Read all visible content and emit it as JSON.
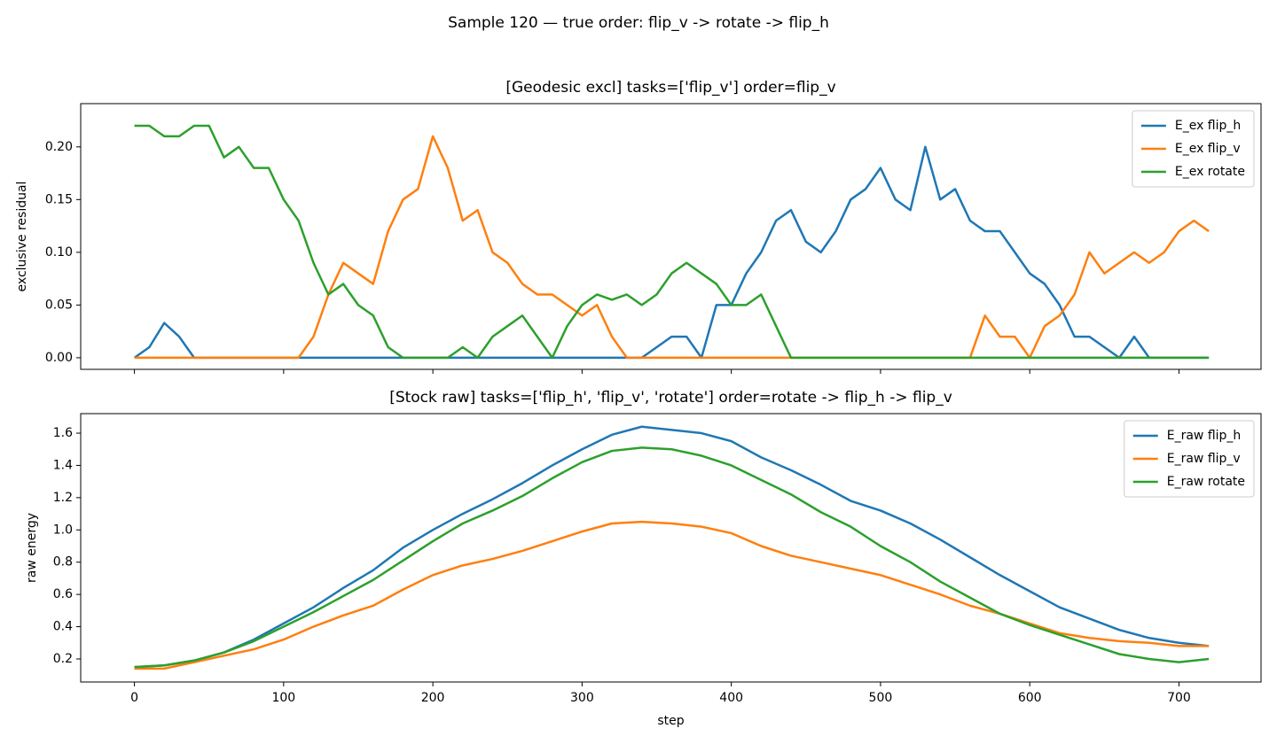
{
  "title": "Sample 120 — true order: flip_v -> rotate -> flip_h",
  "chart_data": [
    {
      "type": "line",
      "title": "[Geodesic excl] tasks=['flip_v'] order=flip_v",
      "y_label": "exclusive residual",
      "x": [
        0,
        10,
        20,
        30,
        40,
        50,
        60,
        70,
        80,
        90,
        100,
        110,
        120,
        130,
        140,
        150,
        160,
        170,
        180,
        190,
        200,
        210,
        220,
        230,
        240,
        250,
        260,
        270,
        280,
        290,
        300,
        310,
        320,
        330,
        340,
        350,
        360,
        370,
        380,
        390,
        400,
        410,
        420,
        430,
        440,
        450,
        460,
        470,
        480,
        490,
        500,
        510,
        520,
        530,
        540,
        550,
        560,
        570,
        580,
        590,
        600,
        610,
        620,
        630,
        640,
        650,
        660,
        670,
        680,
        690,
        700,
        710,
        720
      ],
      "series": [
        {
          "name": "E_ex flip_h",
          "color": "#1f77b4",
          "values": [
            0,
            0.01,
            0.033,
            0.02,
            0,
            0,
            0,
            0,
            0,
            0,
            0,
            0,
            0,
            0,
            0,
            0,
            0,
            0,
            0,
            0,
            0,
            0,
            0,
            0,
            0,
            0,
            0,
            0,
            0,
            0,
            0,
            0,
            0,
            0,
            0,
            0.01,
            0.02,
            0.02,
            0,
            0.05,
            0.05,
            0.08,
            0.1,
            0.13,
            0.14,
            0.11,
            0.1,
            0.12,
            0.15,
            0.16,
            0.18,
            0.15,
            0.14,
            0.2,
            0.15,
            0.16,
            0.13,
            0.12,
            0.12,
            0.1,
            0.08,
            0.07,
            0.05,
            0.02,
            0.02,
            0.01,
            0,
            0.02,
            0,
            0,
            0,
            0,
            0
          ]
        },
        {
          "name": "E_ex flip_v",
          "color": "#ff7f0e",
          "values": [
            0,
            0,
            0,
            0,
            0,
            0,
            0,
            0,
            0,
            0,
            0,
            0,
            0.02,
            0.06,
            0.09,
            0.08,
            0.07,
            0.12,
            0.15,
            0.16,
            0.21,
            0.18,
            0.13,
            0.14,
            0.1,
            0.09,
            0.07,
            0.06,
            0.06,
            0.05,
            0.04,
            0.05,
            0.02,
            0,
            0,
            0,
            0,
            0,
            0,
            0,
            0,
            0,
            0,
            0,
            0,
            0,
            0,
            0,
            0,
            0,
            0,
            0,
            0,
            0,
            0,
            0,
            0,
            0.04,
            0.02,
            0.02,
            0,
            0.03,
            0.04,
            0.06,
            0.1,
            0.08,
            0.09,
            0.1,
            0.09,
            0.1,
            0.12,
            0.13,
            0.12
          ]
        },
        {
          "name": "E_ex rotate",
          "color": "#2ca02c",
          "values": [
            0.22,
            0.22,
            0.21,
            0.21,
            0.22,
            0.22,
            0.19,
            0.2,
            0.18,
            0.18,
            0.15,
            0.13,
            0.09,
            0.06,
            0.07,
            0.05,
            0.04,
            0.01,
            0,
            0,
            0,
            0,
            0.01,
            0,
            0.02,
            0.03,
            0.04,
            0.02,
            0,
            0.03,
            0.05,
            0.06,
            0.055,
            0.06,
            0.05,
            0.06,
            0.08,
            0.09,
            0.08,
            0.07,
            0.05,
            0.05,
            0.06,
            0.03,
            0,
            0,
            0,
            0,
            0,
            0,
            0,
            0,
            0,
            0,
            0,
            0,
            0,
            0,
            0,
            0,
            0,
            0,
            0,
            0,
            0,
            0,
            0,
            0,
            0,
            0,
            0,
            0,
            0
          ]
        }
      ],
      "xlim": [
        -36,
        755
      ],
      "xticks": [
        0,
        100,
        200,
        300,
        400,
        500,
        600,
        700
      ],
      "ylim": [
        -0.011,
        0.241
      ],
      "yticks": [
        {
          "value": 0,
          "label": "0.00"
        },
        {
          "value": 0.05,
          "label": "0.05"
        },
        {
          "value": 0.1,
          "label": "0.10"
        },
        {
          "value": 0.15,
          "label": "0.15"
        },
        {
          "value": 0.2,
          "label": "0.20"
        }
      ],
      "legend": "upper right"
    },
    {
      "type": "line",
      "title": "[Stock raw] tasks=['flip_h', 'flip_v', 'rotate'] order=rotate -> flip_h -> flip_v",
      "y_label": "raw energy",
      "x_label": "step",
      "x": [
        0,
        20,
        40,
        60,
        80,
        100,
        120,
        140,
        160,
        180,
        200,
        220,
        240,
        260,
        280,
        300,
        320,
        340,
        360,
        380,
        400,
        420,
        440,
        460,
        480,
        500,
        520,
        540,
        560,
        580,
        600,
        620,
        640,
        660,
        680,
        700,
        720
      ],
      "series": [
        {
          "name": "E_raw flip_h",
          "color": "#1f77b4",
          "values": [
            0.15,
            0.16,
            0.19,
            0.24,
            0.32,
            0.42,
            0.52,
            0.64,
            0.75,
            0.89,
            1.0,
            1.1,
            1.19,
            1.29,
            1.4,
            1.5,
            1.59,
            1.64,
            1.62,
            1.6,
            1.55,
            1.45,
            1.37,
            1.28,
            1.18,
            1.12,
            1.04,
            0.94,
            0.83,
            0.72,
            0.62,
            0.52,
            0.45,
            0.38,
            0.33,
            0.3,
            0.28
          ]
        },
        {
          "name": "E_raw flip_v",
          "color": "#ff7f0e",
          "values": [
            0.14,
            0.14,
            0.18,
            0.22,
            0.26,
            0.32,
            0.4,
            0.47,
            0.53,
            0.63,
            0.72,
            0.78,
            0.82,
            0.87,
            0.93,
            0.99,
            1.04,
            1.05,
            1.04,
            1.02,
            0.98,
            0.9,
            0.84,
            0.8,
            0.76,
            0.72,
            0.66,
            0.6,
            0.53,
            0.48,
            0.42,
            0.36,
            0.33,
            0.31,
            0.3,
            0.28,
            0.28
          ]
        },
        {
          "name": "E_raw rotate",
          "color": "#2ca02c",
          "values": [
            0.15,
            0.16,
            0.19,
            0.24,
            0.31,
            0.4,
            0.49,
            0.59,
            0.69,
            0.81,
            0.93,
            1.04,
            1.12,
            1.21,
            1.32,
            1.42,
            1.49,
            1.51,
            1.5,
            1.46,
            1.4,
            1.31,
            1.22,
            1.11,
            1.02,
            0.9,
            0.8,
            0.68,
            0.58,
            0.48,
            0.41,
            0.35,
            0.29,
            0.23,
            0.2,
            0.18,
            0.2
          ]
        }
      ],
      "xlim": [
        -36,
        755
      ],
      "xticks": [
        0,
        100,
        200,
        300,
        400,
        500,
        600,
        700
      ],
      "ylim": [
        0.057,
        1.721
      ],
      "yticks": [
        0.2,
        0.4,
        0.6,
        0.8,
        {
          "value": 1,
          "label": "1.0"
        },
        1.2,
        1.4,
        1.6
      ],
      "legend": "upper right"
    }
  ]
}
